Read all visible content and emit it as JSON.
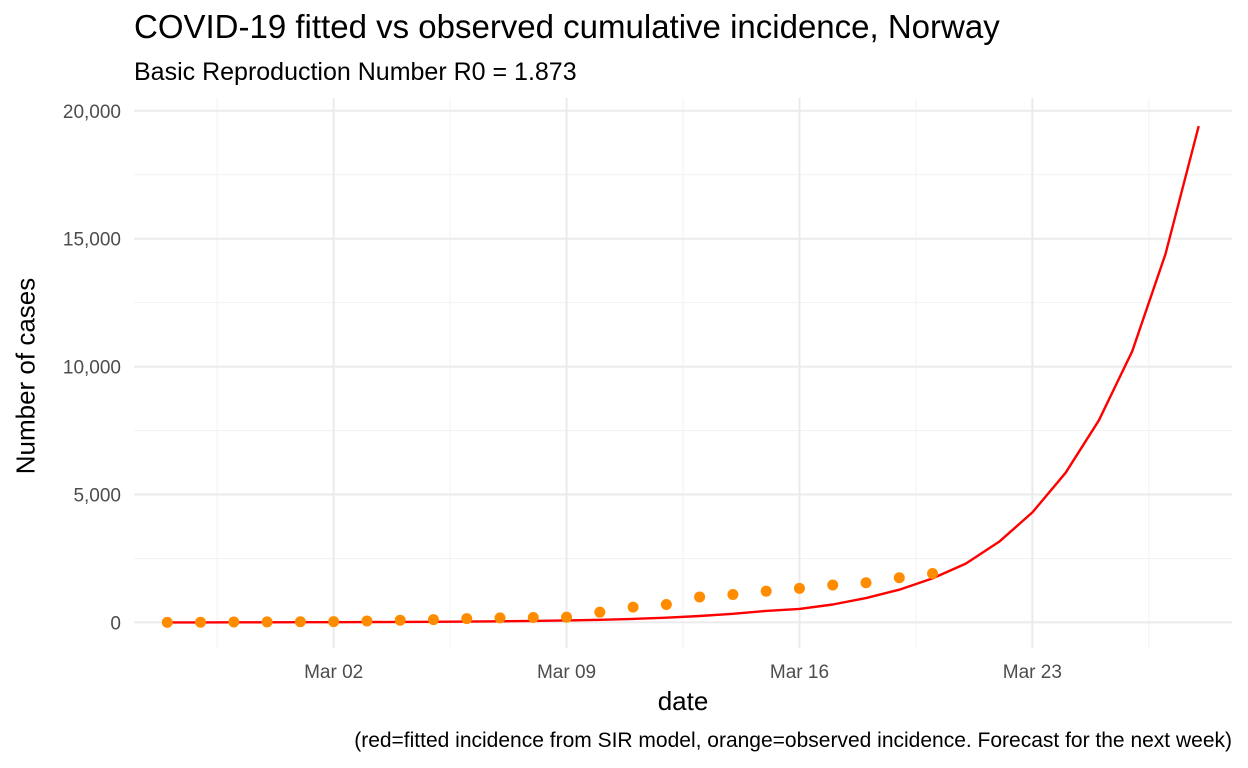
{
  "chart_data": {
    "type": "line",
    "title": "COVID-19 fitted vs observed cumulative incidence, Norway",
    "subtitle": "Basic Reproduction Number R0 = 1.873",
    "caption": "(red=fitted incidence from SIR model, orange=observed incidence. Forecast for the next week)",
    "xlabel": "date",
    "ylabel": "Number of cases",
    "xlim": [
      "2020-02-25",
      "2020-03-29"
    ],
    "ylim": [
      -1000,
      20500
    ],
    "x_ticks": [
      {
        "date": "2020-03-02",
        "label": "Mar 02"
      },
      {
        "date": "2020-03-09",
        "label": "Mar 09"
      },
      {
        "date": "2020-03-16",
        "label": "Mar 16"
      },
      {
        "date": "2020-03-23",
        "label": "Mar 23"
      }
    ],
    "y_ticks": [
      {
        "value": 0,
        "label": "0"
      },
      {
        "value": 5000,
        "label": "5,000"
      },
      {
        "value": 10000,
        "label": "10,000"
      },
      {
        "value": 15000,
        "label": "15,000"
      },
      {
        "value": 20000,
        "label": "20,000"
      }
    ],
    "grid": true,
    "series": [
      {
        "kind": "line",
        "color": "#ff0000",
        "dates": [
          "2020-02-26",
          "2020-02-27",
          "2020-02-28",
          "2020-02-29",
          "2020-03-01",
          "2020-03-02",
          "2020-03-03",
          "2020-03-04",
          "2020-03-05",
          "2020-03-06",
          "2020-03-07",
          "2020-03-08",
          "2020-03-09",
          "2020-03-10",
          "2020-03-11",
          "2020-03-12",
          "2020-03-13",
          "2020-03-14",
          "2020-03-15",
          "2020-03-16",
          "2020-03-17",
          "2020-03-18",
          "2020-03-19",
          "2020-03-20",
          "2020-03-21",
          "2020-03-22",
          "2020-03-23",
          "2020-03-24",
          "2020-03-25",
          "2020-03-26",
          "2020-03-27",
          "2020-03-28"
        ],
        "values": [
          1,
          2,
          3,
          5,
          7,
          10,
          14,
          19,
          25,
          32,
          42,
          58,
          78,
          104,
          138,
          185,
          250,
          335,
          450,
          530,
          700,
          950,
          1280,
          1720,
          2300,
          3150,
          4300,
          5850,
          7900,
          10600,
          14400,
          19400
        ]
      },
      {
        "kind": "scatter",
        "color": "#ff8c00",
        "dates": [
          "2020-02-26",
          "2020-02-27",
          "2020-02-28",
          "2020-02-29",
          "2020-03-01",
          "2020-03-02",
          "2020-03-03",
          "2020-03-04",
          "2020-03-05",
          "2020-03-06",
          "2020-03-07",
          "2020-03-08",
          "2020-03-09",
          "2020-03-10",
          "2020-03-11",
          "2020-03-12",
          "2020-03-13",
          "2020-03-14",
          "2020-03-15",
          "2020-03-16",
          "2020-03-17",
          "2020-03-18",
          "2020-03-19",
          "2020-03-20"
        ],
        "values": [
          1,
          6,
          15,
          19,
          25,
          32,
          56,
          87,
          108,
          147,
          176,
          192,
          205,
          400,
          598,
          702,
          996,
          1090,
          1221,
          1333,
          1463,
          1550,
          1746,
          1914
        ]
      }
    ]
  }
}
